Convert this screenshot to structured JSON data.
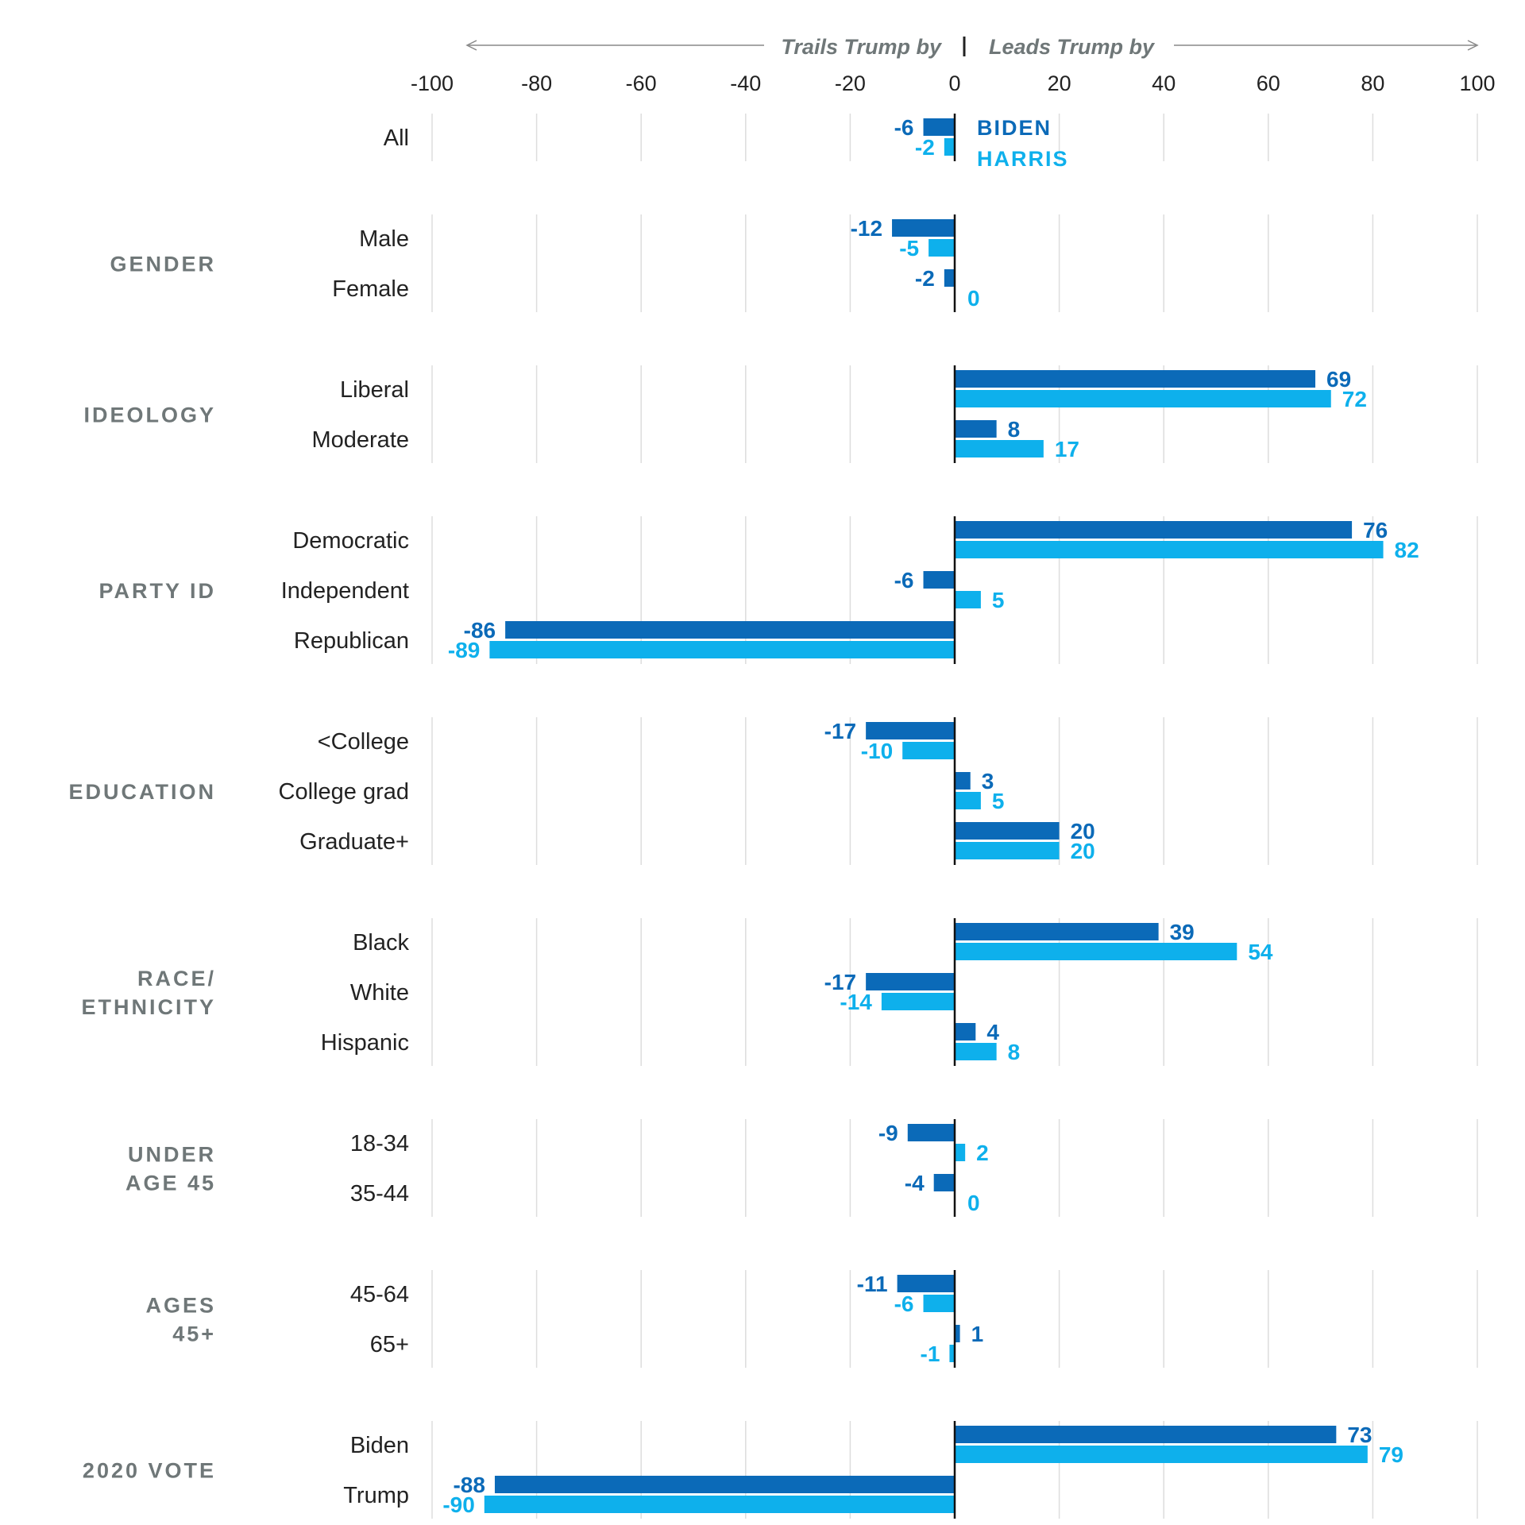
{
  "colors": {
    "biden": "#0b6ab8",
    "harris": "#0eb0ec",
    "grid": "#dddddd",
    "axis": "#111111",
    "group": "#6f7778"
  },
  "header": {
    "left": "Trails Trump by",
    "right": "Leads Trump by"
  },
  "chart_data": {
    "type": "bar",
    "orientation": "horizontal",
    "xlim": [
      -100,
      100
    ],
    "xticks": [
      "-100",
      "-80",
      "-60",
      "-40",
      "-20",
      "0",
      "20",
      "40",
      "60",
      "80",
      "100"
    ],
    "legend": {
      "placement": "inline-first-row",
      "entries": [
        "BIDEN",
        "HARRIS"
      ]
    },
    "series": [
      {
        "name": "BIDEN",
        "key": "biden",
        "color": "#0b6ab8"
      },
      {
        "name": "HARRIS",
        "key": "harris",
        "color": "#0eb0ec"
      }
    ],
    "groups": [
      {
        "label": "",
        "rows": [
          {
            "label": "All",
            "biden": -6,
            "harris": -2
          }
        ]
      },
      {
        "label": "GENDER",
        "rows": [
          {
            "label": "Male",
            "biden": -12,
            "harris": -5
          },
          {
            "label": "Female",
            "biden": -2,
            "harris": 0
          }
        ]
      },
      {
        "label": "IDEOLOGY",
        "rows": [
          {
            "label": "Liberal",
            "biden": 69,
            "harris": 72
          },
          {
            "label": "Moderate",
            "biden": 8,
            "harris": 17
          }
        ]
      },
      {
        "label": "PARTY ID",
        "rows": [
          {
            "label": "Democratic",
            "biden": 76,
            "harris": 82
          },
          {
            "label": "Independent",
            "biden": -6,
            "harris": 5
          },
          {
            "label": "Republican",
            "biden": -86,
            "harris": -89
          }
        ]
      },
      {
        "label": "EDUCATION",
        "rows": [
          {
            "label": "<College",
            "biden": -17,
            "harris": -10
          },
          {
            "label": "College grad",
            "biden": 3,
            "harris": 5
          },
          {
            "label": "Graduate+",
            "biden": 20,
            "harris": 20
          }
        ]
      },
      {
        "label": "RACE/ ETHNICITY",
        "label_lines": [
          "RACE/",
          "ETHNICITY"
        ],
        "rows": [
          {
            "label": "Black",
            "biden": 39,
            "harris": 54
          },
          {
            "label": "White",
            "biden": -17,
            "harris": -14
          },
          {
            "label": "Hispanic",
            "biden": 4,
            "harris": 8
          }
        ]
      },
      {
        "label": "UNDER AGE 45",
        "label_lines": [
          "UNDER",
          "AGE 45"
        ],
        "rows": [
          {
            "label": "18-34",
            "biden": -9,
            "harris": 2
          },
          {
            "label": "35-44",
            "biden": -4,
            "harris": 0
          }
        ]
      },
      {
        "label": "AGES 45+",
        "label_lines": [
          "AGES",
          "45+"
        ],
        "rows": [
          {
            "label": "45-64",
            "biden": -11,
            "harris": -6
          },
          {
            "label": "65+",
            "biden": 1,
            "harris": -1
          }
        ]
      },
      {
        "label": "2020 VOTE",
        "rows": [
          {
            "label": "Biden",
            "biden": 73,
            "harris": 79
          },
          {
            "label": "Trump",
            "biden": -88,
            "harris": -90
          }
        ]
      }
    ]
  }
}
